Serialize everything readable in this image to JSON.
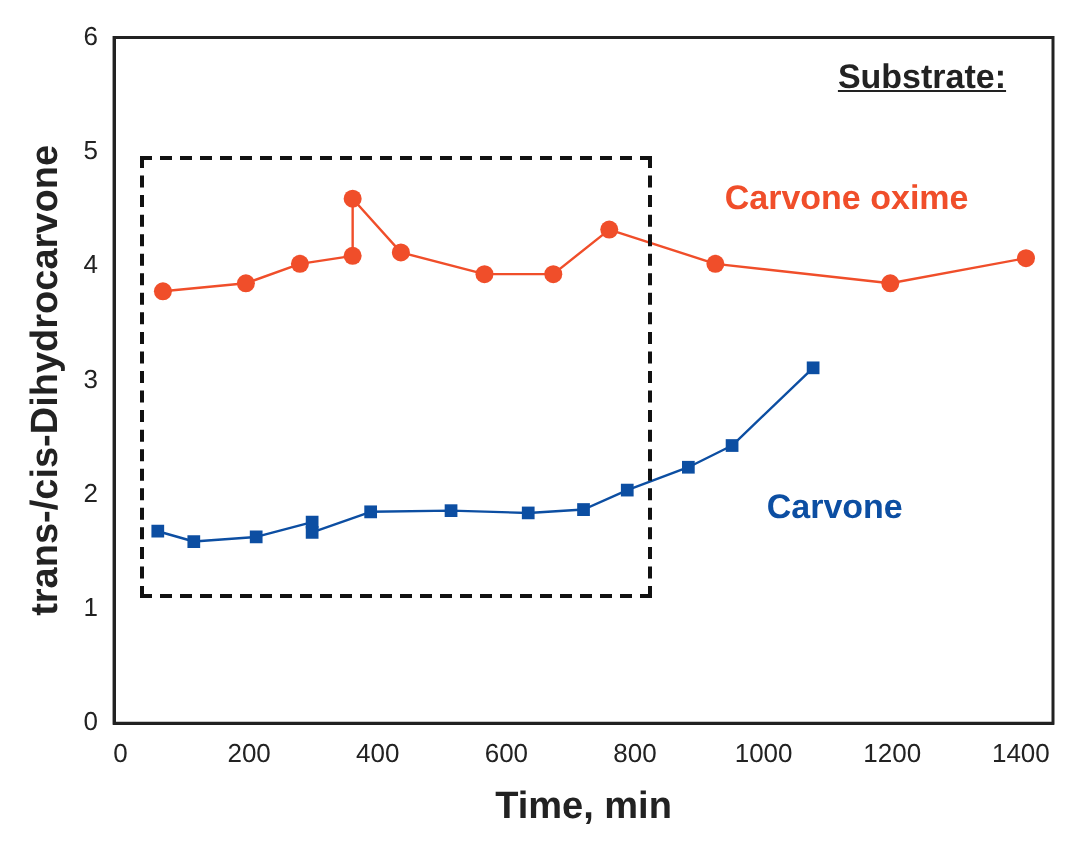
{
  "chart_data": {
    "type": "line",
    "xlabel": "Time, min",
    "ylabel": "trans-/cis-Dihydrocarvone",
    "xlim": [
      -10,
      1450
    ],
    "xticks": [
      0,
      200,
      400,
      600,
      800,
      1000,
      1200,
      1400
    ],
    "ylim": [
      0,
      6
    ],
    "yticks": [
      0,
      1,
      2,
      3,
      4,
      5,
      6
    ],
    "grid": false,
    "legend": false,
    "annotations": [
      "Substrate:"
    ],
    "series": [
      {
        "name": "Carvone oxime",
        "color": "#f04e2a",
        "marker": "circle",
        "x": [
          66,
          195,
          279,
          361,
          361,
          436,
          566,
          673,
          760,
          925,
          1197,
          1408
        ],
        "values": [
          3.78,
          3.85,
          4.02,
          4.09,
          4.59,
          4.12,
          3.93,
          3.93,
          4.32,
          4.02,
          3.85,
          4.07
        ]
      },
      {
        "name": "Carvone",
        "color": "#0c4ea2",
        "marker": "square",
        "x": [
          58,
          114,
          211,
          298,
          298,
          389,
          514,
          634,
          720,
          788,
          883,
          951,
          1077
        ],
        "values": [
          1.68,
          1.59,
          1.63,
          1.76,
          1.67,
          1.85,
          1.86,
          1.84,
          1.87,
          2.04,
          2.24,
          2.43,
          3.11
        ]
      }
    ]
  }
}
